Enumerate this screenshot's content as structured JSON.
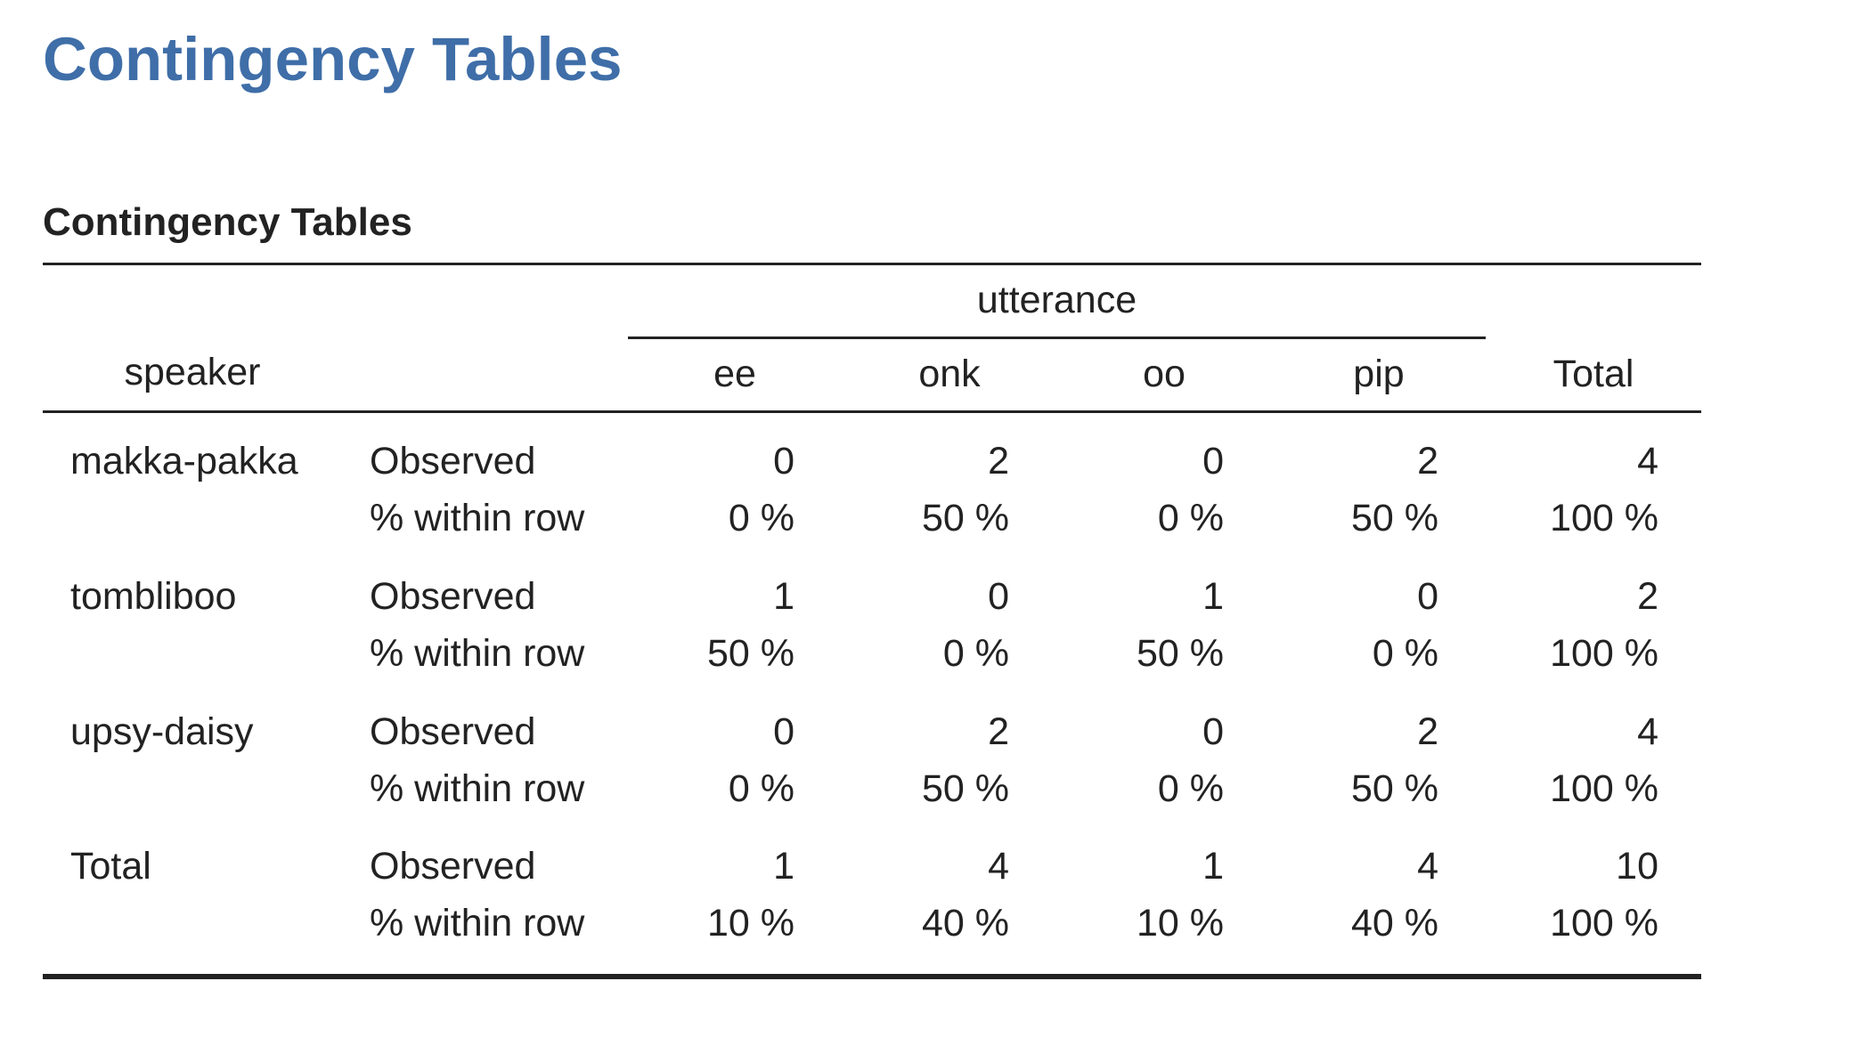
{
  "page_title": "Contingency Tables",
  "table_title": "Contingency Tables",
  "colors": {
    "title": "#3f6ea8",
    "text": "#222222",
    "rule": "#222222"
  },
  "table": {
    "column_group_label": "utterance",
    "row_header": "speaker",
    "columns": [
      "ee",
      "onk",
      "oo",
      "pip",
      "Total"
    ],
    "rows": [
      {
        "label": "makka-pakka",
        "observed_label": "Observed",
        "percent_label": "% within row",
        "observed": [
          "0",
          "2",
          "0",
          "2",
          "4"
        ],
        "percent": [
          "0 %",
          "50 %",
          "0 %",
          "50 %",
          "100 %"
        ]
      },
      {
        "label": "tombliboo",
        "observed_label": "Observed",
        "percent_label": "% within row",
        "observed": [
          "1",
          "0",
          "1",
          "0",
          "2"
        ],
        "percent": [
          "50 %",
          "0 %",
          "50 %",
          "0 %",
          "100 %"
        ]
      },
      {
        "label": "upsy-daisy",
        "observed_label": "Observed",
        "percent_label": "% within row",
        "observed": [
          "0",
          "2",
          "0",
          "2",
          "4"
        ],
        "percent": [
          "0 %",
          "50 %",
          "0 %",
          "50 %",
          "100 %"
        ]
      },
      {
        "label": "Total",
        "observed_label": "Observed",
        "percent_label": "% within row",
        "observed": [
          "1",
          "4",
          "1",
          "4",
          "10"
        ],
        "percent": [
          "10 %",
          "40 %",
          "10 %",
          "40 %",
          "100 %"
        ]
      }
    ]
  }
}
